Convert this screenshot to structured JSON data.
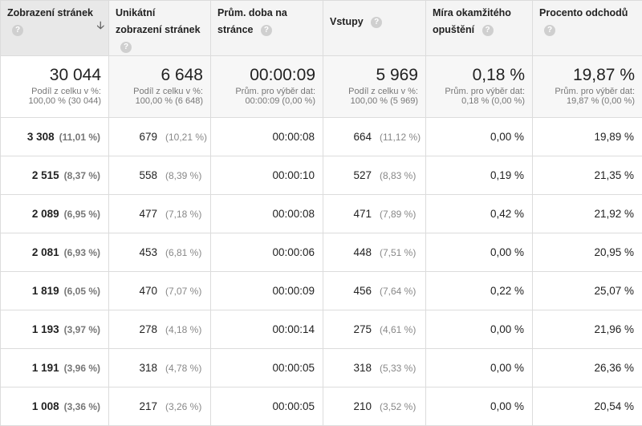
{
  "columns": [
    {
      "label": "Zobrazení stránek",
      "help": "?",
      "sort_icon": "arrow-down-icon"
    },
    {
      "label": "Unikátní zobrazení stránek",
      "help": "?"
    },
    {
      "label": "Prům. doba na stránce",
      "help": "?"
    },
    {
      "label": "Vstupy",
      "help": "?"
    },
    {
      "label": "Míra okamžitého opuštění",
      "help": "?"
    },
    {
      "label": "Procento odchodů",
      "help": "?"
    }
  ],
  "totals": [
    {
      "value": "30 044",
      "sub1": "Podíl z celku v %:",
      "sub2": "100,00 % (30 044)"
    },
    {
      "value": "6 648",
      "sub1": "Podíl z celku v %:",
      "sub2": "100,00 % (6 648)"
    },
    {
      "value": "00:00:09",
      "sub1": "Prům. pro výběr dat:",
      "sub2": "00:00:09 (0,00 %)"
    },
    {
      "value": "5 969",
      "sub1": "Podíl z celku v %:",
      "sub2": "100,00 % (5 969)"
    },
    {
      "value": "0,18 %",
      "sub1": "Prům. pro výběr dat:",
      "sub2": "0,18 % (0,00 %)"
    },
    {
      "value": "19,87 %",
      "sub1": "Prům. pro výběr dat:",
      "sub2": "19,87 % (0,00 %)"
    }
  ],
  "rows": [
    {
      "pv": "3 308",
      "pv_pct": "(11,01 %)",
      "u": "679",
      "u_pct": "(10,21 %)",
      "t": "00:00:08",
      "e": "664",
      "e_pct": "(11,12 %)",
      "b": "0,00 %",
      "x": "19,89 %"
    },
    {
      "pv": "2 515",
      "pv_pct": "(8,37 %)",
      "u": "558",
      "u_pct": "(8,39 %)",
      "t": "00:00:10",
      "e": "527",
      "e_pct": "(8,83 %)",
      "b": "0,19 %",
      "x": "21,35 %"
    },
    {
      "pv": "2 089",
      "pv_pct": "(6,95 %)",
      "u": "477",
      "u_pct": "(7,18 %)",
      "t": "00:00:08",
      "e": "471",
      "e_pct": "(7,89 %)",
      "b": "0,42 %",
      "x": "21,92 %"
    },
    {
      "pv": "2 081",
      "pv_pct": "(6,93 %)",
      "u": "453",
      "u_pct": "(6,81 %)",
      "t": "00:00:06",
      "e": "448",
      "e_pct": "(7,51 %)",
      "b": "0,00 %",
      "x": "20,95 %"
    },
    {
      "pv": "1 819",
      "pv_pct": "(6,05 %)",
      "u": "470",
      "u_pct": "(7,07 %)",
      "t": "00:00:09",
      "e": "456",
      "e_pct": "(7,64 %)",
      "b": "0,22 %",
      "x": "25,07 %"
    },
    {
      "pv": "1 193",
      "pv_pct": "(3,97 %)",
      "u": "278",
      "u_pct": "(4,18 %)",
      "t": "00:00:14",
      "e": "275",
      "e_pct": "(4,61 %)",
      "b": "0,00 %",
      "x": "21,96 %"
    },
    {
      "pv": "1 191",
      "pv_pct": "(3,96 %)",
      "u": "318",
      "u_pct": "(4,78 %)",
      "t": "00:00:05",
      "e": "318",
      "e_pct": "(5,33 %)",
      "b": "0,00 %",
      "x": "26,36 %"
    },
    {
      "pv": "1 008",
      "pv_pct": "(3,36 %)",
      "u": "217",
      "u_pct": "(3,26 %)",
      "t": "00:00:05",
      "e": "210",
      "e_pct": "(3,52 %)",
      "b": "0,00 %",
      "x": "20,54 %"
    }
  ]
}
